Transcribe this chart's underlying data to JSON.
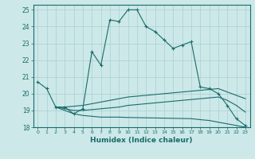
{
  "xlabel": "Humidex (Indice chaleur)",
  "background_color": "#cce8e8",
  "grid_color": "#aad0d0",
  "line_color": "#1a6b6b",
  "xlim": [
    -0.5,
    23.5
  ],
  "ylim": [
    18,
    25.3
  ],
  "xticks": [
    0,
    1,
    2,
    3,
    4,
    5,
    6,
    7,
    8,
    9,
    10,
    11,
    12,
    13,
    14,
    15,
    16,
    17,
    18,
    19,
    20,
    21,
    22,
    23
  ],
  "yticks": [
    18,
    19,
    20,
    21,
    22,
    23,
    24,
    25
  ],
  "line1_x": [
    0,
    1,
    2,
    3,
    4,
    5,
    6,
    7,
    8,
    9,
    10,
    11,
    12,
    13,
    14,
    15,
    16,
    17,
    18,
    19,
    20,
    21,
    22,
    23
  ],
  "line1_y": [
    20.7,
    20.3,
    19.2,
    19.2,
    18.8,
    19.1,
    22.5,
    21.7,
    24.4,
    24.3,
    25.0,
    25.0,
    24.0,
    23.7,
    23.2,
    22.7,
    22.9,
    23.1,
    20.4,
    20.3,
    20.0,
    19.3,
    18.5,
    18.1
  ],
  "line2_x": [
    2,
    3,
    4,
    5,
    6,
    7,
    8,
    9,
    10,
    11,
    12,
    13,
    14,
    15,
    16,
    17,
    18,
    19,
    20,
    21,
    22,
    23
  ],
  "line2_y": [
    19.2,
    19.2,
    19.25,
    19.3,
    19.4,
    19.5,
    19.6,
    19.7,
    19.8,
    19.85,
    19.9,
    19.95,
    20.0,
    20.05,
    20.1,
    20.15,
    20.2,
    20.25,
    20.3,
    20.1,
    19.9,
    19.7
  ],
  "line3_x": [
    2,
    3,
    4,
    5,
    6,
    7,
    8,
    9,
    10,
    11,
    12,
    13,
    14,
    15,
    16,
    17,
    18,
    19,
    20,
    21,
    22,
    23
  ],
  "line3_y": [
    19.2,
    19.0,
    18.8,
    18.7,
    18.65,
    18.6,
    18.6,
    18.6,
    18.58,
    18.57,
    18.56,
    18.55,
    18.54,
    18.53,
    18.52,
    18.51,
    18.45,
    18.4,
    18.3,
    18.2,
    18.1,
    18.0
  ],
  "line4_x": [
    2,
    3,
    4,
    5,
    6,
    7,
    8,
    9,
    10,
    11,
    12,
    13,
    14,
    15,
    16,
    17,
    18,
    19,
    20,
    21,
    22,
    23
  ],
  "line4_y": [
    19.2,
    19.1,
    19.0,
    19.0,
    19.05,
    19.1,
    19.15,
    19.2,
    19.3,
    19.35,
    19.4,
    19.45,
    19.5,
    19.55,
    19.6,
    19.65,
    19.7,
    19.75,
    19.8,
    19.6,
    19.3,
    18.9
  ]
}
